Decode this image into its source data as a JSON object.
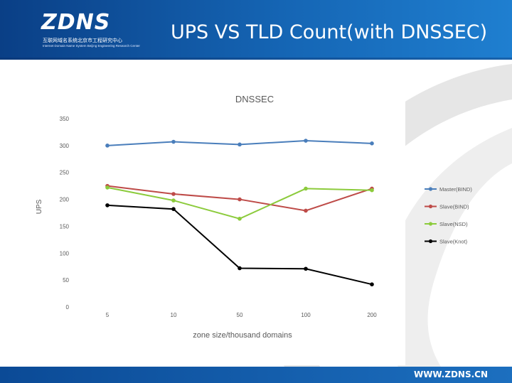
{
  "header": {
    "logo_text": "ZDNS",
    "logo_sub_cn": "互联网域名系统北京市工程研究中心",
    "logo_sub_en": "Internet Domain Name System Beijing Engineering Research Center",
    "title": "UPS VS TLD Count(with DNSSEC)"
  },
  "footer": {
    "url": "WWW.ZDNS.CN"
  },
  "chart_data": {
    "type": "line",
    "title": "DNSSEC",
    "xlabel": "zone size/thousand domains",
    "ylabel": "UPS",
    "categories": [
      "5",
      "10",
      "50",
      "100",
      "200"
    ],
    "ylim": [
      0,
      350
    ],
    "yticks": [
      0,
      50,
      100,
      150,
      200,
      250,
      300,
      350
    ],
    "legend_position": "right",
    "grid": false,
    "series": [
      {
        "name": "Master(BIND)",
        "color": "#4a7ebb",
        "values": [
          300,
          307,
          302,
          309,
          304
        ]
      },
      {
        "name": "Slave(BIND)",
        "color": "#be4b48",
        "values": [
          225,
          210,
          200,
          179,
          220
        ]
      },
      {
        "name": "Slave(NSD)",
        "color": "#8ccb3c",
        "values": [
          222,
          198,
          164,
          220,
          217
        ]
      },
      {
        "name": "Slave(Knot)",
        "color": "#000000",
        "values": [
          189,
          182,
          72,
          71,
          42
        ]
      }
    ]
  }
}
